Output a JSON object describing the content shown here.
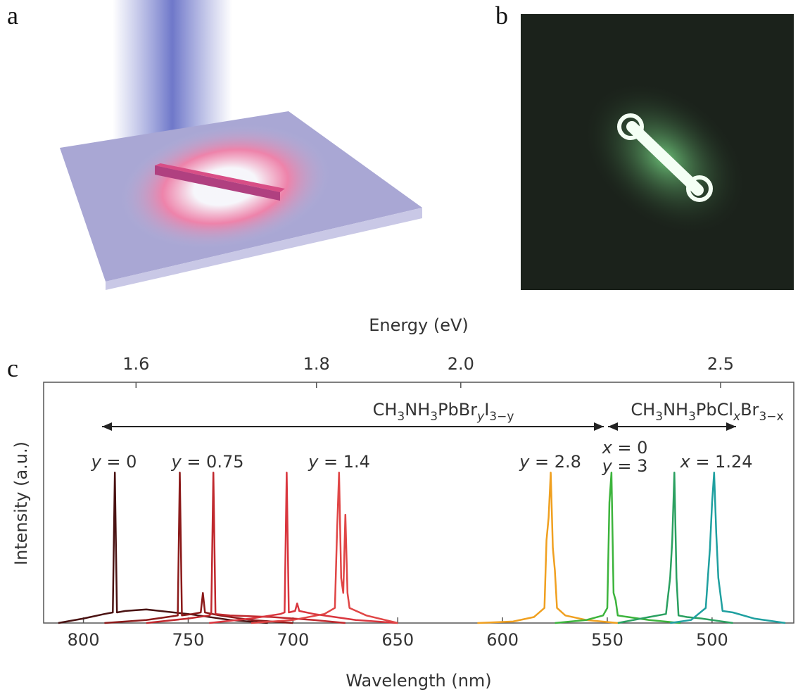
{
  "panel_labels": [
    "a",
    "b",
    "c"
  ],
  "chart_data": {
    "type": "line",
    "xlabel": "Wavelength (nm)",
    "ylabel": "Intensity (a.u.)",
    "x2label": "Energy (eV)",
    "xlim": [
      819,
      461
    ],
    "xticks": [
      800,
      750,
      700,
      650,
      600,
      550,
      500
    ],
    "x2ticks": [
      1.6,
      1.8,
      2.0,
      2.5
    ],
    "ylim": [
      0,
      1.6
    ],
    "formulas": [
      [
        "CH",
        "3",
        "NH",
        "3",
        "PbBr",
        "y",
        "I",
        "3−y"
      ],
      [
        "CH",
        "3",
        "NH",
        "3",
        "PbCl",
        "x",
        "Br",
        "3−x"
      ]
    ],
    "annotations": [
      "y = 0",
      "y = 0.75",
      "y = 1.4",
      "y = 2.8",
      "x = 0",
      "y = 3",
      "x = 1.24"
    ],
    "series": [
      {
        "color": "#4a1212",
        "x": [
          812,
          800,
          790,
          786,
          785,
          784,
          780,
          770,
          750,
          730,
          712
        ],
        "values": [
          0,
          0.03,
          0.06,
          0.07,
          1.0,
          0.07,
          0.08,
          0.09,
          0.06,
          0.02,
          0
        ]
      },
      {
        "color": "#8b1a1a",
        "x": [
          790,
          770,
          760,
          755,
          754,
          753,
          748,
          744,
          743,
          742,
          735,
          720,
          700
        ],
        "values": [
          0,
          0.02,
          0.04,
          0.05,
          1.0,
          0.05,
          0.06,
          0.07,
          0.2,
          0.07,
          0.05,
          0.02,
          0
        ]
      },
      {
        "color": "#c0282d",
        "x": [
          770,
          750,
          740,
          739,
          738,
          737,
          730,
          710,
          690,
          675
        ],
        "values": [
          0,
          0.03,
          0.05,
          0.06,
          1.0,
          0.06,
          0.05,
          0.04,
          0.02,
          0
        ]
      },
      {
        "color": "#d9363e",
        "x": [
          740,
          720,
          706,
          704,
          703,
          702,
          699,
          698,
          697,
          690,
          670,
          650
        ],
        "values": [
          0,
          0.03,
          0.06,
          0.07,
          1.0,
          0.07,
          0.08,
          0.13,
          0.08,
          0.06,
          0.02,
          0
        ]
      },
      {
        "color": "#e04646",
        "x": [
          720,
          700,
          685,
          680,
          679,
          678,
          677,
          676,
          675,
          674,
          673,
          665,
          650
        ],
        "values": [
          0,
          0.02,
          0.06,
          0.1,
          0.6,
          1.0,
          0.3,
          0.2,
          0.72,
          0.2,
          0.1,
          0.05,
          0
        ]
      },
      {
        "color": "#f0a020",
        "x": [
          612,
          595,
          585,
          580,
          579,
          578,
          577,
          576,
          575,
          574,
          570,
          560,
          545
        ],
        "values": [
          0,
          0.01,
          0.04,
          0.1,
          0.55,
          0.7,
          1.0,
          0.5,
          0.35,
          0.1,
          0.05,
          0.02,
          0
        ]
      },
      {
        "color": "#3cb43c",
        "x": [
          575,
          560,
          552,
          550,
          549,
          548,
          547,
          546,
          545,
          540,
          530,
          515
        ],
        "values": [
          0,
          0.02,
          0.05,
          0.1,
          0.8,
          1.0,
          0.2,
          0.15,
          0.05,
          0.04,
          0.02,
          0
        ]
      },
      {
        "color": "#2aa060",
        "x": [
          545,
          530,
          522,
          520,
          519,
          518,
          517,
          516,
          512,
          505,
          490
        ],
        "values": [
          0,
          0.04,
          0.06,
          0.3,
          0.55,
          1.0,
          0.3,
          0.05,
          0.04,
          0.03,
          0
        ]
      },
      {
        "color": "#1fa0a0",
        "x": [
          520,
          510,
          503,
          501,
          500,
          499,
          498,
          497,
          495,
          490,
          480,
          465
        ],
        "values": [
          0,
          0.02,
          0.1,
          0.5,
          0.8,
          1.0,
          0.6,
          0.3,
          0.08,
          0.07,
          0.03,
          0
        ]
      }
    ]
  }
}
